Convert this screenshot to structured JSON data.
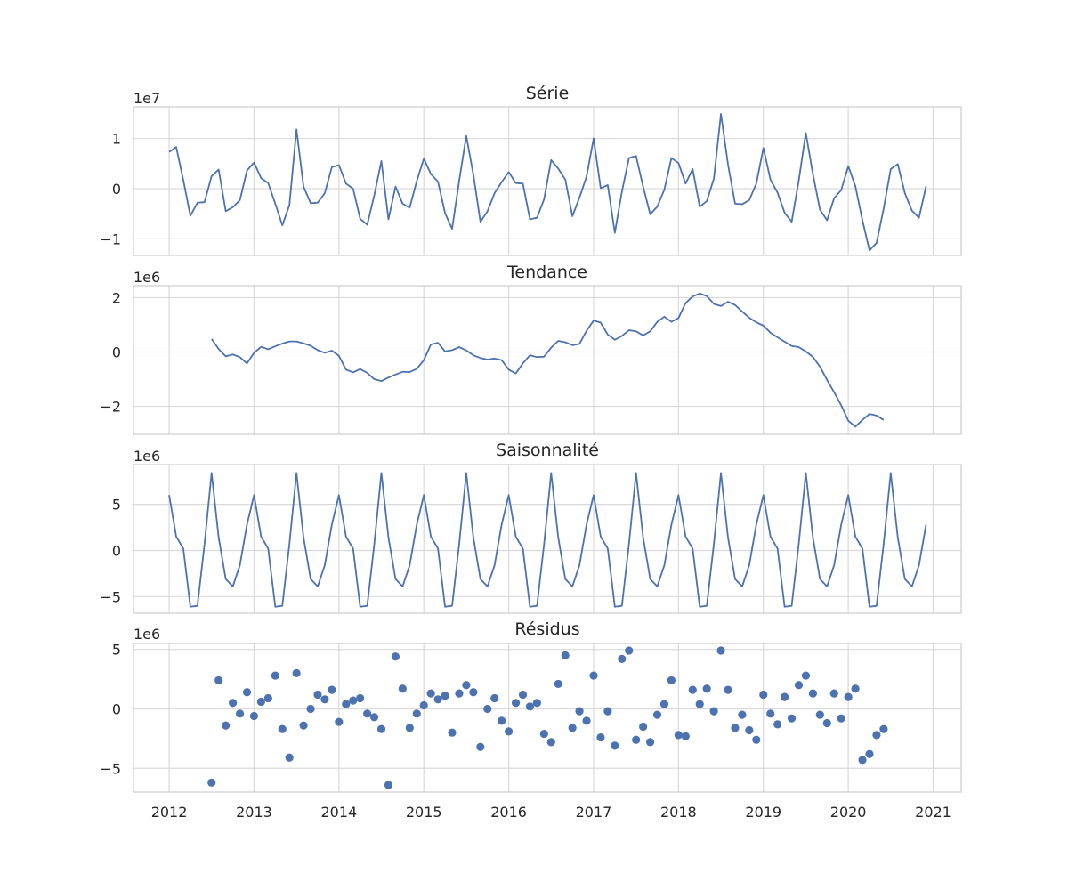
{
  "chart_data": [
    {
      "type": "line",
      "title": "Série",
      "y_exponent_label": "1e7",
      "ylim": [
        -13300000,
        16300000
      ],
      "yticks": [
        -10000000,
        0,
        10000000
      ],
      "ytick_labels": [
        "−1",
        "0",
        "1"
      ],
      "xlim": [
        2011.58,
        2021.33
      ],
      "grid": true,
      "series": [
        {
          "x_start": 2012.0,
          "x_step": 0.0833333,
          "values": [
            7300000,
            8300000,
            1700000,
            -5400000,
            -2800000,
            -2700000,
            2500000,
            3800000,
            -4500000,
            -3700000,
            -2300000,
            3600000,
            5200000,
            2100000,
            1100000,
            -3000000,
            -7300000,
            -3300000,
            11800000,
            400000,
            -2900000,
            -2800000,
            -900000,
            4300000,
            4700000,
            1000000,
            0,
            -6000000,
            -7200000,
            -1300000,
            5500000,
            -6100000,
            400000,
            -3000000,
            -3800000,
            1500000,
            6000000,
            2900000,
            1400000,
            -4900000,
            -8000000,
            1600000,
            10500000,
            2800000,
            -6600000,
            -4500000,
            -900000,
            1300000,
            3300000,
            1100000,
            1000000,
            -6100000,
            -5800000,
            -2100000,
            5700000,
            4000000,
            1800000,
            -5500000,
            -1800000,
            2400000,
            10000000,
            100000,
            700000,
            -8800000,
            -600000,
            6100000,
            6500000,
            400000,
            -5100000,
            -3600000,
            -200000,
            6100000,
            5100000,
            1000000,
            3900000,
            -3600000,
            -2500000,
            2000000,
            14900000,
            4800000,
            -3000000,
            -3100000,
            -2300000,
            1000000,
            8100000,
            1800000,
            -800000,
            -4800000,
            -6600000,
            1600000,
            11100000,
            2900000,
            -4200000,
            -6300000,
            -1900000,
            -300000,
            4500000,
            500000,
            -6300000,
            -12300000,
            -10800000,
            -4000000,
            3900000,
            4900000,
            -900000,
            -4400000,
            -5800000,
            500000
          ]
        }
      ]
    },
    {
      "type": "line",
      "title": "Tendance",
      "y_exponent_label": "1e6",
      "ylim": [
        -3030000,
        2440000
      ],
      "yticks": [
        -2000000,
        0,
        2000000
      ],
      "ytick_labels": [
        "−2",
        "0",
        "2"
      ],
      "xlim": [
        2011.58,
        2021.33
      ],
      "grid": true,
      "series": [
        {
          "x_start": 2012.5,
          "x_step": 0.0833333,
          "values": [
            480000,
            110000,
            -160000,
            -90000,
            -190000,
            -420000,
            -30000,
            190000,
            100000,
            210000,
            310000,
            390000,
            390000,
            320000,
            230000,
            70000,
            -30000,
            50000,
            -140000,
            -650000,
            -750000,
            -630000,
            -770000,
            -1000000,
            -1070000,
            -940000,
            -830000,
            -730000,
            -740000,
            -620000,
            -300000,
            280000,
            340000,
            20000,
            70000,
            180000,
            60000,
            -120000,
            -220000,
            -280000,
            -240000,
            -300000,
            -650000,
            -790000,
            -420000,
            -120000,
            -190000,
            -170000,
            160000,
            410000,
            360000,
            250000,
            300000,
            780000,
            1160000,
            1080000,
            640000,
            450000,
            590000,
            800000,
            760000,
            610000,
            760000,
            1110000,
            1300000,
            1110000,
            1250000,
            1800000,
            2040000,
            2150000,
            2060000,
            1770000,
            1690000,
            1850000,
            1730000,
            1490000,
            1260000,
            1090000,
            970000,
            710000,
            540000,
            380000,
            220000,
            180000,
            20000,
            -180000,
            -540000,
            -1030000,
            -1480000,
            -1960000,
            -2530000,
            -2750000,
            -2500000,
            -2280000,
            -2340000,
            -2500000
          ]
        }
      ]
    },
    {
      "type": "line",
      "title": "Saisonnalité",
      "y_exponent_label": "1e6",
      "ylim": [
        -6800000,
        9300000
      ],
      "yticks": [
        -5000000,
        0,
        5000000
      ],
      "ytick_labels": [
        "−5",
        "0",
        "5"
      ],
      "xlim": [
        2011.58,
        2021.33
      ],
      "grid": true,
      "series": [
        {
          "x_start": 2012.0,
          "x_step": 0.0833333,
          "pattern": [
            6000000,
            1500000,
            200000,
            -6100000,
            -6000000,
            700000,
            8400000,
            1400000,
            -3100000,
            -3900000,
            -1600000,
            2800000
          ],
          "count": 108
        }
      ]
    },
    {
      "type": "scatter",
      "title": "Résidus",
      "y_exponent_label": "1e6",
      "ylim": [
        -7000000,
        5500000
      ],
      "yticks": [
        -5000000,
        0,
        5000000
      ],
      "ytick_labels": [
        "−5",
        "0",
        "5"
      ],
      "xlim": [
        2011.58,
        2021.33
      ],
      "grid": true,
      "series": [
        {
          "x_start": 2012.5,
          "x_step": 0.0833333,
          "values": [
            -6200000,
            2400000,
            -1400000,
            500000,
            -400000,
            1400000,
            -600000,
            600000,
            900000,
            2800000,
            -1700000,
            -4100000,
            3000000,
            -1400000,
            0,
            1200000,
            800000,
            1600000,
            -1100000,
            400000,
            700000,
            900000,
            -400000,
            -700000,
            -1700000,
            -6400000,
            4400000,
            1700000,
            -1600000,
            -400000,
            300000,
            1300000,
            800000,
            1100000,
            -2000000,
            1300000,
            2000000,
            1400000,
            -3200000,
            0,
            900000,
            -1000000,
            -1900000,
            500000,
            1200000,
            200000,
            500000,
            -2100000,
            -2800000,
            2100000,
            4500000,
            -1600000,
            -200000,
            -1000000,
            2800000,
            -2400000,
            -200000,
            -3100000,
            4200000,
            4900000,
            -2600000,
            -1500000,
            -2800000,
            -500000,
            400000,
            2400000,
            -2200000,
            -2300000,
            1600000,
            400000,
            1700000,
            -200000,
            4900000,
            1600000,
            -1600000,
            -500000,
            -1800000,
            -2600000,
            1200000,
            -400000,
            -1300000,
            1000000,
            -800000,
            2000000,
            2800000,
            1300000,
            -500000,
            -1200000,
            1300000,
            -800000,
            1000000,
            1700000,
            -4300000,
            -3800000,
            -2200000,
            -1700000
          ]
        }
      ]
    }
  ],
  "x_ticks": [
    2012,
    2013,
    2014,
    2015,
    2016,
    2017,
    2018,
    2019,
    2020,
    2021
  ],
  "x_tick_labels": [
    "2012",
    "2013",
    "2014",
    "2015",
    "2016",
    "2017",
    "2018",
    "2019",
    "2020",
    "2021"
  ]
}
